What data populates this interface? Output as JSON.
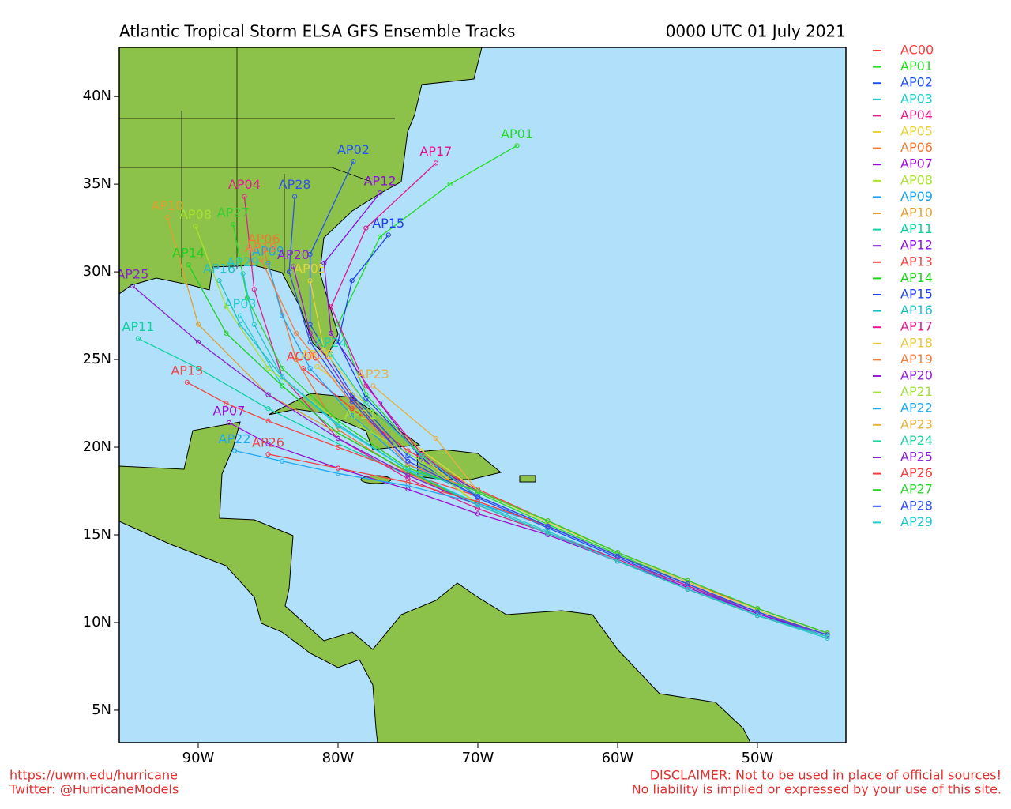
{
  "map": {
    "title": "Atlantic Tropical Storm ELSA GFS Ensemble Tracks",
    "date": "0000 UTC 01 July 2021",
    "xlim": [
      -95.65,
      -43.67
    ],
    "ylim": [
      3.15,
      42.8
    ],
    "xticks": [
      {
        "value": -90,
        "label": "90W"
      },
      {
        "value": -80,
        "label": "80W"
      },
      {
        "value": -70,
        "label": "70W"
      },
      {
        "value": -60,
        "label": "60W"
      },
      {
        "value": -50,
        "label": "50W"
      }
    ],
    "yticks": [
      {
        "value": 5,
        "label": "5N"
      },
      {
        "value": 10,
        "label": "10N"
      },
      {
        "value": 15,
        "label": "15N"
      },
      {
        "value": 20,
        "label": "20N"
      },
      {
        "value": 25,
        "label": "25N"
      },
      {
        "value": 30,
        "label": "30N"
      },
      {
        "value": 35,
        "label": "35N"
      },
      {
        "value": 40,
        "label": "40N"
      }
    ],
    "members": [
      {
        "name": "AC00",
        "color": "#ff3a3a",
        "lon": [
          -45,
          -50,
          -55,
          -60,
          -65,
          -70,
          -75,
          -79,
          -82.5
        ],
        "lat": [
          9.4,
          10.8,
          12.3,
          14.0,
          15.8,
          17.6,
          19.8,
          22.2,
          24.5
        ]
      },
      {
        "name": "AP01",
        "color": "#22dd22",
        "lon": [
          -45,
          -50,
          -55,
          -60,
          -65,
          -70,
          -74,
          -78,
          -80,
          -77,
          -72,
          -67.2
        ],
        "lat": [
          9.3,
          10.6,
          12.2,
          13.9,
          15.6,
          17.4,
          19.5,
          23,
          27,
          32,
          35,
          37.2
        ]
      },
      {
        "name": "AP02",
        "color": "#2255ee",
        "lon": [
          -45,
          -50,
          -55,
          -60,
          -65,
          -70,
          -75,
          -79,
          -82,
          -82,
          -78.9
        ],
        "lat": [
          9.2,
          10.5,
          12.1,
          13.7,
          15.4,
          17.1,
          19.5,
          23,
          27,
          31,
          36.3
        ]
      },
      {
        "name": "AP03",
        "color": "#22cccc",
        "lon": [
          -45,
          -50,
          -55,
          -60,
          -65,
          -70,
          -75,
          -80,
          -84,
          -87
        ],
        "lat": [
          9.1,
          10.4,
          12.0,
          13.6,
          15.2,
          16.8,
          18.6,
          20.8,
          23.5,
          27.5
        ]
      },
      {
        "name": "AP04",
        "color": "#e0208c",
        "lon": [
          -45,
          -50,
          -55,
          -60,
          -65,
          -70,
          -75,
          -80,
          -84,
          -86,
          -86.7
        ],
        "lat": [
          9.3,
          10.6,
          12.1,
          13.6,
          15.1,
          16.5,
          18.2,
          20.5,
          24,
          29,
          34.3
        ]
      },
      {
        "name": "AP05",
        "color": "#e6d23c",
        "lon": [
          -45,
          -50,
          -55,
          -60,
          -65,
          -70,
          -74,
          -78,
          -81,
          -82
        ],
        "lat": [
          9.3,
          10.7,
          12.3,
          14,
          15.7,
          17.5,
          19.8,
          22.5,
          25.5,
          29.5
        ]
      },
      {
        "name": "AP06",
        "color": "#f07830",
        "lon": [
          -45,
          -50,
          -55,
          -60,
          -65,
          -70,
          -75,
          -80,
          -83,
          -85.3
        ],
        "lat": [
          9.2,
          10.4,
          11.9,
          13.5,
          15.1,
          16.7,
          18.5,
          21,
          25,
          31.2
        ]
      },
      {
        "name": "AP07",
        "color": "#9a10d0",
        "lon": [
          -45,
          -50,
          -55,
          -60,
          -65,
          -70,
          -75,
          -80,
          -85,
          -87.8
        ],
        "lat": [
          9.3,
          10.5,
          12,
          13.5,
          15,
          16.2,
          17.6,
          18.8,
          20.2,
          21.4
        ]
      },
      {
        "name": "AP08",
        "color": "#a8e030",
        "lon": [
          -45,
          -50,
          -55,
          -60,
          -65,
          -70,
          -75,
          -80,
          -85,
          -88,
          -90.2
        ],
        "lat": [
          9.4,
          10.8,
          12.4,
          14.0,
          15.8,
          17.5,
          18.8,
          21.5,
          24.5,
          28,
          32.6
        ]
      },
      {
        "name": "AP09",
        "color": "#20a0f0",
        "lon": [
          -45,
          -50,
          -55,
          -60,
          -65,
          -70,
          -75,
          -79,
          -82,
          -84,
          -85
        ],
        "lat": [
          9.3,
          10.6,
          12.2,
          13.8,
          15.5,
          17.2,
          19,
          21.8,
          24.5,
          27.5,
          30.5
        ]
      },
      {
        "name": "AP10",
        "color": "#e0a030",
        "lon": [
          -45,
          -50,
          -55,
          -60,
          -65,
          -70,
          -75,
          -80,
          -85,
          -90,
          -92.2
        ],
        "lat": [
          9.2,
          10.4,
          11.9,
          13.5,
          15.1,
          16.7,
          18.6,
          20.8,
          23,
          27,
          33.1
        ]
      },
      {
        "name": "AP11",
        "color": "#10d0a0",
        "lon": [
          -45,
          -50,
          -55,
          -60,
          -65,
          -70,
          -75,
          -80,
          -85,
          -90,
          -94.3
        ],
        "lat": [
          9.2,
          10.4,
          11.9,
          13.5,
          15.1,
          16.7,
          18.4,
          20.2,
          22.2,
          24.5,
          26.2
        ]
      },
      {
        "name": "AP12",
        "color": "#8a10d8",
        "lon": [
          -45,
          -50,
          -55,
          -60,
          -65,
          -70,
          -74,
          -77,
          -80.5,
          -81,
          -77
        ],
        "lat": [
          9.4,
          10.8,
          12.4,
          14.0,
          15.8,
          17.5,
          19.3,
          22.5,
          26.5,
          30.5,
          34.5
        ]
      },
      {
        "name": "AP13",
        "color": "#f04848",
        "lon": [
          -45,
          -50,
          -55,
          -60,
          -65,
          -70,
          -75,
          -80,
          -85,
          -88,
          -90.8
        ],
        "lat": [
          9.3,
          10.6,
          12.2,
          13.8,
          15.5,
          17.2,
          18.5,
          20,
          21.5,
          22.5,
          23.7
        ]
      },
      {
        "name": "AP14",
        "color": "#20d020",
        "lon": [
          -45,
          -50,
          -55,
          -60,
          -65,
          -70,
          -75,
          -80,
          -84,
          -88,
          -90.7
        ],
        "lat": [
          9.2,
          10.4,
          11.9,
          13.5,
          15.1,
          16.7,
          18.6,
          20.8,
          23.5,
          26.5,
          30.4
        ]
      },
      {
        "name": "AP15",
        "color": "#2040f0",
        "lon": [
          -45,
          -50,
          -55,
          -60,
          -65,
          -70,
          -74,
          -78,
          -80,
          -79,
          -76.4
        ],
        "lat": [
          9.3,
          10.6,
          12.2,
          13.8,
          15.5,
          17.2,
          19.4,
          22.8,
          26,
          29.5,
          32.1
        ]
      },
      {
        "name": "AP16",
        "color": "#20c0c0",
        "lon": [
          -45,
          -50,
          -55,
          -60,
          -65,
          -70,
          -75,
          -80,
          -84,
          -87,
          -88.5
        ],
        "lat": [
          9.4,
          10.8,
          12.4,
          14.0,
          15.8,
          17.5,
          18.7,
          21.3,
          24,
          27,
          29.5
        ]
      },
      {
        "name": "AP17",
        "color": "#e01890",
        "lon": [
          -45,
          -50,
          -55,
          -60,
          -65,
          -70,
          -74,
          -78,
          -80.5,
          -78,
          -73
        ],
        "lat": [
          9.3,
          10.6,
          12.2,
          13.8,
          15.5,
          17.2,
          19.6,
          23.5,
          28,
          32.5,
          36.2
        ]
      },
      {
        "name": "AP18",
        "color": "#e8c840",
        "lon": [
          -45,
          -50,
          -55,
          -60,
          -65,
          -70,
          -74,
          -78,
          -81.5
        ],
        "lat": [
          9.2,
          10.4,
          11.9,
          13.5,
          15.1,
          16.7,
          19.5,
          22.5,
          24.6
        ]
      },
      {
        "name": "AP19",
        "color": "#f08040",
        "lon": [
          -45,
          -50,
          -55,
          -60,
          -65,
          -70,
          -75,
          -79,
          -83,
          -85.5
        ],
        "lat": [
          9.4,
          10.8,
          12.4,
          14.0,
          15.8,
          17.5,
          19,
          22.5,
          26.5,
          30.7
        ]
      },
      {
        "name": "AP20",
        "color": "#9020d0",
        "lon": [
          -45,
          -50,
          -55,
          -60,
          -65,
          -70,
          -75,
          -79,
          -82,
          -83.2
        ],
        "lat": [
          9.3,
          10.6,
          12.2,
          13.8,
          15.5,
          17.2,
          19.2,
          22.8,
          26.5,
          30.3
        ]
      },
      {
        "name": "AP21",
        "color": "#a0e040",
        "lon": [
          -45,
          -50,
          -55,
          -60,
          -65,
          -70,
          -74,
          -78.4
        ],
        "lat": [
          9.2,
          10.4,
          11.9,
          13.5,
          15.1,
          16.7,
          19.2,
          21.2
        ]
      },
      {
        "name": "AP22",
        "color": "#20a8f0",
        "lon": [
          -45,
          -50,
          -55,
          -60,
          -65,
          -70,
          -75,
          -80,
          -84,
          -87.4
        ],
        "lat": [
          9.3,
          10.6,
          12.2,
          13.8,
          15.5,
          16.8,
          17.8,
          18.5,
          19.2,
          19.8
        ]
      },
      {
        "name": "AP23",
        "color": "#e8b040",
        "lon": [
          -45,
          -50,
          -55,
          -60,
          -65,
          -70,
          -73,
          -77.5
        ],
        "lat": [
          9.4,
          10.8,
          12.4,
          14.0,
          15.8,
          17.5,
          20.5,
          23.5
        ]
      },
      {
        "name": "AP24",
        "color": "#20d0a0",
        "lon": [
          -45,
          -50,
          -55,
          -60,
          -65,
          -70,
          -74,
          -78,
          -80.5
        ],
        "lat": [
          9.3,
          10.6,
          12.2,
          13.8,
          15.5,
          17.2,
          19.5,
          22.5,
          25.3
        ]
      },
      {
        "name": "AP25",
        "color": "#8a20d0",
        "lon": [
          -45,
          -50,
          -55,
          -60,
          -65,
          -70,
          -75,
          -80,
          -85,
          -90,
          -94.7
        ],
        "lat": [
          9.2,
          10.4,
          11.9,
          13.5,
          15.1,
          16.7,
          18.4,
          20.5,
          23,
          26,
          29.2
        ]
      },
      {
        "name": "AP26",
        "color": "#f04040",
        "lon": [
          -45,
          -50,
          -55,
          -60,
          -65,
          -70,
          -75,
          -80,
          -85
        ],
        "lat": [
          9.3,
          10.6,
          12.2,
          13.8,
          15.5,
          16.9,
          18,
          18.8,
          19.6
        ]
      },
      {
        "name": "AP27",
        "color": "#30d030",
        "lon": [
          -45,
          -50,
          -55,
          -60,
          -65,
          -70,
          -75,
          -80,
          -84,
          -86.5,
          -87.5
        ],
        "lat": [
          9.4,
          10.8,
          12.4,
          14.0,
          15.8,
          17.5,
          18.8,
          21.5,
          24.5,
          28.5,
          32.7
        ]
      },
      {
        "name": "AP28",
        "color": "#3050f0",
        "lon": [
          -45,
          -50,
          -55,
          -60,
          -65,
          -70,
          -75,
          -79,
          -82,
          -83.5,
          -83.1
        ],
        "lat": [
          9.3,
          10.6,
          12.2,
          13.8,
          15.5,
          17.2,
          19.2,
          22.6,
          26,
          30,
          34.3
        ]
      },
      {
        "name": "AP29",
        "color": "#20c8d0",
        "lon": [
          -45,
          -50,
          -55,
          -60,
          -65,
          -70,
          -75,
          -80,
          -84,
          -86,
          -86.8
        ],
        "lat": [
          9.2,
          10.4,
          11.9,
          13.5,
          15.1,
          16.7,
          18.7,
          21.2,
          24,
          27,
          29.9
        ]
      }
    ]
  },
  "footer": {
    "url": "https://uwm.edu/hurricane",
    "twitter": "Twitter: @HurricaneModels",
    "disclaimer": "DISCLAIMER: Not to be used in place of official sources!",
    "liability": "No liability is implied or expressed by your use of this site."
  }
}
